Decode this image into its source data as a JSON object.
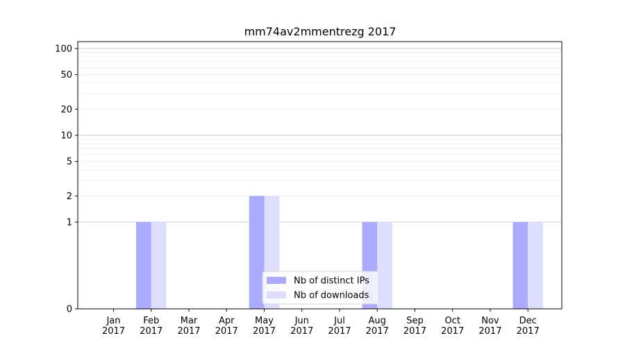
{
  "chart_data": {
    "type": "bar",
    "title": "mm74av2mmentrezg 2017",
    "xlabel": "",
    "ylabel": "",
    "y_scale": "symlog",
    "ylim": [
      0,
      120
    ],
    "y_ticks": [
      "0",
      "1",
      "2",
      "5",
      "10",
      "20",
      "50",
      "100"
    ],
    "categories": [
      "Jan\n2017",
      "Feb\n2017",
      "Mar\n2017",
      "Apr\n2017",
      "May\n2017",
      "Jun\n2017",
      "Jul\n2017",
      "Aug\n2017",
      "Sep\n2017",
      "Oct\n2017",
      "Nov\n2017",
      "Dec\n2017"
    ],
    "series": [
      {
        "name": "Nb of distinct IPs",
        "color": "#aaaaff",
        "values": [
          0,
          1,
          0,
          0,
          2,
          0,
          0,
          1,
          0,
          0,
          0,
          1
        ]
      },
      {
        "name": "Nb of downloads",
        "color": "#ddddff",
        "values": [
          0,
          1,
          0,
          0,
          2,
          0,
          0,
          1,
          0,
          0,
          0,
          1
        ]
      }
    ],
    "legend_position": "bottom-center",
    "grid": true
  }
}
